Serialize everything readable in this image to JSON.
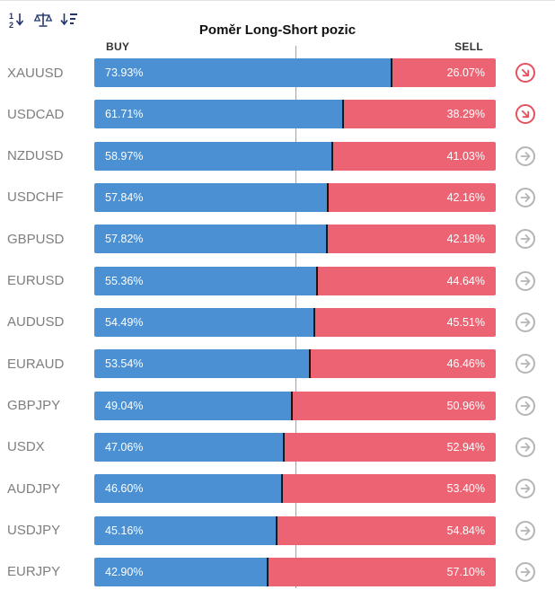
{
  "header": {
    "title": "Poměr Long-Short pozic",
    "buy_label": "BUY",
    "sell_label": "SELL",
    "toolbar_icons": [
      "sort-numeric-icon",
      "balance-icon",
      "sort-amount-icon"
    ]
  },
  "colors": {
    "buy": "#4a90d2",
    "sell": "#ec6373",
    "icon_red": "#e4525f",
    "icon_gray": "#b5b5b5",
    "symbol_text": "#7e7e7e",
    "divider": "#161616",
    "center_line": "#a2a2a2"
  },
  "rows": [
    {
      "symbol": "XAUUSD",
      "buy_value": 73.93,
      "sell_value": 26.07,
      "buy_label": "73.93%",
      "sell_label": "26.07%",
      "highlighted": true
    },
    {
      "symbol": "USDCAD",
      "buy_value": 61.71,
      "sell_value": 38.29,
      "buy_label": "61.71%",
      "sell_label": "38.29%",
      "highlighted": true
    },
    {
      "symbol": "NZDUSD",
      "buy_value": 58.97,
      "sell_value": 41.03,
      "buy_label": "58.97%",
      "sell_label": "41.03%",
      "highlighted": false
    },
    {
      "symbol": "USDCHF",
      "buy_value": 57.84,
      "sell_value": 42.16,
      "buy_label": "57.84%",
      "sell_label": "42.16%",
      "highlighted": false
    },
    {
      "symbol": "GBPUSD",
      "buy_value": 57.82,
      "sell_value": 42.18,
      "buy_label": "57.82%",
      "sell_label": "42.18%",
      "highlighted": false
    },
    {
      "symbol": "EURUSD",
      "buy_value": 55.36,
      "sell_value": 44.64,
      "buy_label": "55.36%",
      "sell_label": "44.64%",
      "highlighted": false
    },
    {
      "symbol": "AUDUSD",
      "buy_value": 54.49,
      "sell_value": 45.51,
      "buy_label": "54.49%",
      "sell_label": "45.51%",
      "highlighted": false
    },
    {
      "symbol": "EURAUD",
      "buy_value": 53.54,
      "sell_value": 46.46,
      "buy_label": "53.54%",
      "sell_label": "46.46%",
      "highlighted": false
    },
    {
      "symbol": "GBPJPY",
      "buy_value": 49.04,
      "sell_value": 50.96,
      "buy_label": "49.04%",
      "sell_label": "50.96%",
      "highlighted": false
    },
    {
      "symbol": "USDX",
      "buy_value": 47.06,
      "sell_value": 52.94,
      "buy_label": "47.06%",
      "sell_label": "52.94%",
      "highlighted": false
    },
    {
      "symbol": "AUDJPY",
      "buy_value": 46.6,
      "sell_value": 53.4,
      "buy_label": "46.60%",
      "sell_label": "53.40%",
      "highlighted": false
    },
    {
      "symbol": "USDJPY",
      "buy_value": 45.16,
      "sell_value": 54.84,
      "buy_label": "45.16%",
      "sell_label": "54.84%",
      "highlighted": false
    },
    {
      "symbol": "EURJPY",
      "buy_value": 42.9,
      "sell_value": 57.1,
      "buy_label": "42.90%",
      "sell_label": "57.10%",
      "highlighted": false
    }
  ],
  "chart_data": {
    "type": "bar",
    "orientation": "horizontal-stacked",
    "title": "Poměr Long-Short pozic",
    "categories": [
      "XAUUSD",
      "USDCAD",
      "NZDUSD",
      "USDCHF",
      "GBPUSD",
      "EURUSD",
      "AUDUSD",
      "EURAUD",
      "GBPJPY",
      "USDX",
      "AUDJPY",
      "USDJPY",
      "EURJPY"
    ],
    "series": [
      {
        "name": "BUY",
        "color": "#4a90d2",
        "values": [
          73.93,
          61.71,
          58.97,
          57.84,
          57.82,
          55.36,
          54.49,
          53.54,
          49.04,
          47.06,
          46.6,
          45.16,
          42.9
        ]
      },
      {
        "name": "SELL",
        "color": "#ec6373",
        "values": [
          26.07,
          38.29,
          41.03,
          42.16,
          42.18,
          44.64,
          45.51,
          46.46,
          50.96,
          52.94,
          53.4,
          54.84,
          57.1
        ]
      }
    ],
    "xlim": [
      0,
      100
    ],
    "value_unit": "%",
    "midline_at": 50,
    "legend_position": "top (BUY left, SELL right)",
    "grid": false
  }
}
